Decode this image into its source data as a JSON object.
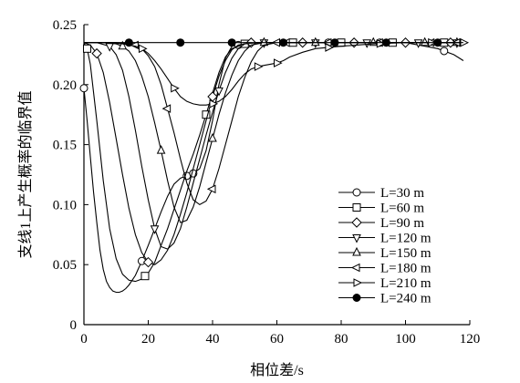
{
  "chart_data": {
    "type": "line",
    "xlabel": "相位差/s",
    "ylabel": "支线1上产生概率的临界值",
    "xlim": [
      0,
      120
    ],
    "ylim": [
      0,
      0.25
    ],
    "x_ticks": [
      "0",
      "20",
      "40",
      "60",
      "80",
      "100",
      "120"
    ],
    "y_ticks": [
      "0",
      "0.05",
      "0.10",
      "0.15",
      "0.20",
      "0.25"
    ],
    "grid": false,
    "legend_position": "lower-right",
    "series": [
      {
        "name": "L=30 m",
        "marker": "circle-open",
        "x": [
          0,
          1,
          2,
          3,
          4,
          5,
          6,
          7,
          8,
          9,
          10,
          11,
          12,
          13,
          14,
          15,
          16,
          17,
          18,
          20,
          22,
          24,
          26,
          28,
          30,
          32,
          34,
          36,
          38,
          40,
          42,
          44,
          46,
          50,
          55,
          60,
          70,
          80,
          90,
          100,
          110,
          115,
          118
        ],
        "y": [
          0.197,
          0.17,
          0.14,
          0.11,
          0.085,
          0.062,
          0.046,
          0.036,
          0.031,
          0.028,
          0.027,
          0.027,
          0.028,
          0.03,
          0.033,
          0.037,
          0.041,
          0.047,
          0.053,
          0.066,
          0.08,
          0.094,
          0.107,
          0.117,
          0.122,
          0.124,
          0.126,
          0.13,
          0.145,
          0.17,
          0.2,
          0.222,
          0.232,
          0.234,
          0.235,
          0.235,
          0.235,
          0.235,
          0.235,
          0.235,
          0.23,
          0.225,
          0.22
        ],
        "marker_x": [
          0,
          18,
          32,
          34,
          48,
          64,
          76,
          92,
          112
        ]
      },
      {
        "name": "L=60 m",
        "marker": "square-open",
        "x": [
          0,
          1,
          2,
          4,
          6,
          8,
          10,
          12,
          14,
          16,
          18,
          20,
          22,
          24,
          26,
          28,
          30,
          32,
          34,
          36,
          38,
          40,
          42,
          44,
          46,
          50,
          55,
          60,
          70,
          80,
          90,
          100,
          110,
          118
        ],
        "y": [
          0.235,
          0.23,
          0.217,
          0.17,
          0.12,
          0.08,
          0.055,
          0.042,
          0.037,
          0.036,
          0.038,
          0.043,
          0.052,
          0.066,
          0.08,
          0.096,
          0.112,
          0.128,
          0.142,
          0.158,
          0.175,
          0.193,
          0.21,
          0.223,
          0.23,
          0.234,
          0.235,
          0.235,
          0.235,
          0.235,
          0.235,
          0.235,
          0.235,
          0.235
        ],
        "marker_x": [
          1,
          19,
          38,
          50,
          65,
          80,
          96,
          112
        ]
      },
      {
        "name": "L=90 m",
        "marker": "diamond-open",
        "x": [
          0,
          2,
          4,
          6,
          8,
          10,
          12,
          14,
          16,
          18,
          20,
          22,
          24,
          26,
          28,
          30,
          32,
          34,
          36,
          38,
          40,
          42,
          44,
          46,
          48,
          52,
          56,
          60,
          70,
          80,
          90,
          100,
          110,
          118
        ],
        "y": [
          0.235,
          0.233,
          0.226,
          0.21,
          0.185,
          0.155,
          0.125,
          0.097,
          0.075,
          0.06,
          0.052,
          0.05,
          0.054,
          0.062,
          0.075,
          0.092,
          0.11,
          0.13,
          0.15,
          0.17,
          0.19,
          0.207,
          0.22,
          0.229,
          0.233,
          0.235,
          0.235,
          0.235,
          0.235,
          0.235,
          0.235,
          0.235,
          0.235,
          0.235
        ],
        "marker_x": [
          4,
          20,
          40,
          52,
          68,
          84,
          100,
          114
        ]
      },
      {
        "name": "L=120 m",
        "marker": "triangle-down-open",
        "x": [
          0,
          4,
          8,
          10,
          12,
          14,
          16,
          18,
          20,
          22,
          24,
          26,
          28,
          30,
          32,
          34,
          36,
          38,
          40,
          42,
          44,
          46,
          48,
          50,
          54,
          58,
          62,
          70,
          80,
          90,
          100,
          110,
          118
        ],
        "y": [
          0.235,
          0.235,
          0.232,
          0.225,
          0.212,
          0.19,
          0.162,
          0.132,
          0.104,
          0.08,
          0.065,
          0.063,
          0.068,
          0.08,
          0.098,
          0.118,
          0.138,
          0.158,
          0.177,
          0.195,
          0.21,
          0.222,
          0.23,
          0.234,
          0.235,
          0.235,
          0.235,
          0.235,
          0.235,
          0.235,
          0.235,
          0.235,
          0.235
        ],
        "marker_x": [
          8,
          22,
          42,
          56,
          72,
          88,
          104,
          116
        ]
      },
      {
        "name": "L=150 m",
        "marker": "triangle-up-open",
        "x": [
          0,
          6,
          10,
          12,
          14,
          16,
          18,
          20,
          22,
          24,
          26,
          28,
          30,
          32,
          34,
          36,
          38,
          40,
          42,
          44,
          46,
          48,
          50,
          52,
          56,
          60,
          64,
          70,
          80,
          90,
          100,
          110,
          118
        ],
        "y": [
          0.235,
          0.235,
          0.234,
          0.232,
          0.228,
          0.22,
          0.207,
          0.19,
          0.168,
          0.145,
          0.12,
          0.098,
          0.085,
          0.087,
          0.098,
          0.115,
          0.135,
          0.155,
          0.175,
          0.193,
          0.208,
          0.22,
          0.228,
          0.233,
          0.235,
          0.235,
          0.235,
          0.235,
          0.235,
          0.235,
          0.235,
          0.235,
          0.235
        ],
        "marker_x": [
          12,
          24,
          40,
          56,
          72,
          90,
          106,
          116
        ]
      },
      {
        "name": "L=180 m",
        "marker": "triangle-left-open",
        "x": [
          0,
          10,
          14,
          16,
          18,
          20,
          22,
          24,
          26,
          28,
          30,
          32,
          34,
          36,
          38,
          40,
          42,
          44,
          46,
          48,
          50,
          52,
          54,
          56,
          60,
          64,
          70,
          80,
          90,
          100,
          110,
          118
        ],
        "y": [
          0.235,
          0.235,
          0.234,
          0.233,
          0.23,
          0.224,
          0.215,
          0.2,
          0.18,
          0.16,
          0.138,
          0.118,
          0.104,
          0.1,
          0.103,
          0.113,
          0.13,
          0.15,
          0.17,
          0.19,
          0.206,
          0.219,
          0.228,
          0.233,
          0.235,
          0.235,
          0.235,
          0.235,
          0.235,
          0.235,
          0.235,
          0.235
        ],
        "marker_x": [
          16,
          26,
          40,
          60,
          76,
          92,
          108,
          116
        ]
      },
      {
        "name": "L=210 m",
        "marker": "triangle-right-open",
        "x": [
          0,
          8,
          12,
          16,
          18,
          20,
          22,
          24,
          26,
          28,
          30,
          32,
          34,
          36,
          38,
          40,
          42,
          44,
          46,
          48,
          50,
          52,
          54,
          56,
          58,
          60,
          62,
          64,
          68,
          72,
          80,
          90,
          100,
          110,
          115,
          118
        ],
        "y": [
          0.235,
          0.235,
          0.234,
          0.232,
          0.23,
          0.226,
          0.22,
          0.213,
          0.205,
          0.197,
          0.19,
          0.186,
          0.184,
          0.183,
          0.183,
          0.184,
          0.186,
          0.19,
          0.196,
          0.203,
          0.209,
          0.213,
          0.215,
          0.216,
          0.217,
          0.218,
          0.22,
          0.223,
          0.227,
          0.23,
          0.232,
          0.234,
          0.235,
          0.235,
          0.235,
          0.235
        ],
        "marker_x": [
          18,
          28,
          40,
          54,
          60,
          76,
          92,
          108,
          118
        ]
      },
      {
        "name": "L=240 m",
        "marker": "circle-filled",
        "x": [
          0,
          10,
          20,
          30,
          40,
          50,
          60,
          70,
          80,
          90,
          100,
          110,
          118
        ],
        "y": [
          0.235,
          0.235,
          0.235,
          0.235,
          0.235,
          0.235,
          0.235,
          0.235,
          0.235,
          0.235,
          0.235,
          0.235,
          0.235
        ],
        "marker_x": [
          14,
          30,
          46,
          62,
          78,
          94,
          110
        ]
      }
    ]
  }
}
